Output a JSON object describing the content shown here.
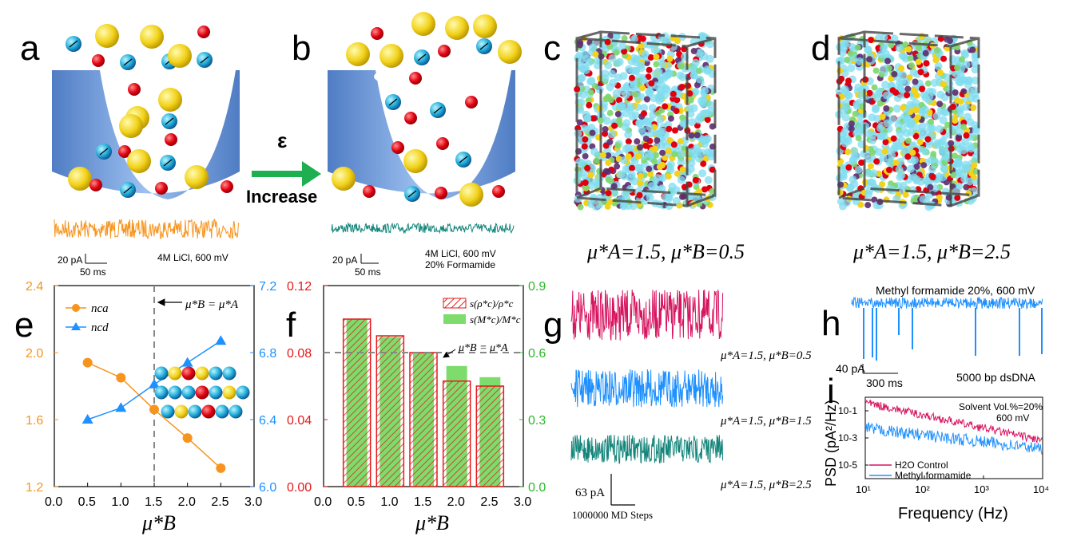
{
  "panels": {
    "a": {
      "label": "a",
      "scale_current": "20 pA",
      "scale_time": "50 ms",
      "condition": "4M LiCl, 600 mV"
    },
    "arrow": {
      "symbol": "ε",
      "text": "Increase"
    },
    "b": {
      "label": "b",
      "scale_current": "20 pA",
      "scale_time": "50 ms",
      "condition_line1": "4M LiCl, 600 mV",
      "condition_line2": "20% Formamide"
    },
    "c": {
      "label": "c",
      "caption": "μ*A=1.5, μ*B=0.5"
    },
    "d": {
      "label": "d",
      "caption": "μ*A=1.5, μ*B=2.5"
    },
    "e": {
      "label": "e",
      "legend1": "nca",
      "legend2": "ncd",
      "annotation": "μ*B = μ*A",
      "xlabel": "μ*B",
      "left_ticks": [
        "1.2",
        "1.6",
        "2.0",
        "2.4"
      ],
      "right_ticks": [
        "6.0",
        "6.4",
        "6.8",
        "7.2"
      ],
      "x_ticks": [
        "0.0",
        "0.5",
        "1.0",
        "1.5",
        "2.0",
        "2.5",
        "3.0"
      ]
    },
    "f": {
      "label": "f",
      "legend1": "s(ρ*c)/ρ*c",
      "legend2": "s(M*c)/M*c",
      "annotation": "μ*B = μ*A",
      "xlabel": "μ*B",
      "left_ticks": [
        "0.00",
        "0.04",
        "0.08",
        "0.12"
      ],
      "right_ticks": [
        "0.0",
        "0.3",
        "0.6",
        "0.9"
      ],
      "x_ticks": [
        "0.0",
        "0.5",
        "1.0",
        "1.5",
        "2.0",
        "2.5",
        "3.0"
      ]
    },
    "g": {
      "label": "g",
      "trace1": "μ*A=1.5, μ*B=0.5",
      "trace2": "μ*A=1.5, μ*B=1.5",
      "trace3": "μ*A=1.5, μ*B=2.5",
      "scale_current": "63 pA",
      "scale_steps": "1000000 MD Steps"
    },
    "h": {
      "label": "h",
      "title": "Methyl formamide 20%, 600 mV",
      "scale_current": "40 pA",
      "scale_time": "300 ms",
      "sample": "5000 bp dsDNA"
    },
    "i": {
      "label": "i",
      "note_line1": "Solvent Vol.%=20%",
      "note_line2": "600 mV",
      "legend1": "H2O Control",
      "legend2": "Methyl formamide",
      "ylabel": "PSD (pA²/Hz)",
      "xlabel": "Frequency (Hz)",
      "y_ticks": [
        "10-5",
        "10-3",
        "10-1"
      ],
      "x_ticks": [
        "10¹",
        "10²",
        "10³",
        "10⁴"
      ]
    }
  },
  "colors": {
    "orange": "#f7941d",
    "blue": "#1e90ff",
    "teal": "#13857a",
    "magenta": "#d6145f",
    "red": "#e31a1c",
    "green": "#7ddc6c",
    "grey_dash": "#888888"
  },
  "chart_data": [
    {
      "type": "line",
      "panel": "e",
      "x": [
        0.5,
        1.0,
        1.5,
        2.0,
        2.5
      ],
      "series": [
        {
          "name": "nca",
          "axis": "left",
          "values": [
            1.94,
            1.85,
            1.66,
            1.49,
            1.31
          ]
        },
        {
          "name": "ncd",
          "axis": "right",
          "values": [
            6.4,
            6.47,
            6.61,
            6.74,
            6.87
          ]
        }
      ],
      "xlabel": "μ*B",
      "xlim": [
        0.0,
        3.0
      ],
      "ylim_left": [
        1.2,
        2.4
      ],
      "ylim_right": [
        6.0,
        7.2
      ],
      "vline": 1.5
    },
    {
      "type": "bar",
      "panel": "f",
      "categories": [
        0.5,
        1.0,
        1.5,
        2.0,
        2.5
      ],
      "series": [
        {
          "name": "s(ρ*c)/ρ*c",
          "axis": "left",
          "values": [
            0.1,
            0.09,
            0.08,
            0.063,
            0.06
          ]
        },
        {
          "name": "s(M*c)/M*c",
          "axis": "right",
          "values": [
            0.75,
            0.67,
            0.6,
            0.54,
            0.49
          ]
        }
      ],
      "xlabel": "μ*B",
      "xlim": [
        0.0,
        3.0
      ],
      "ylim_left": [
        0.0,
        0.12
      ],
      "ylim_right": [
        0.0,
        0.9
      ],
      "hline": 0.08
    }
  ]
}
